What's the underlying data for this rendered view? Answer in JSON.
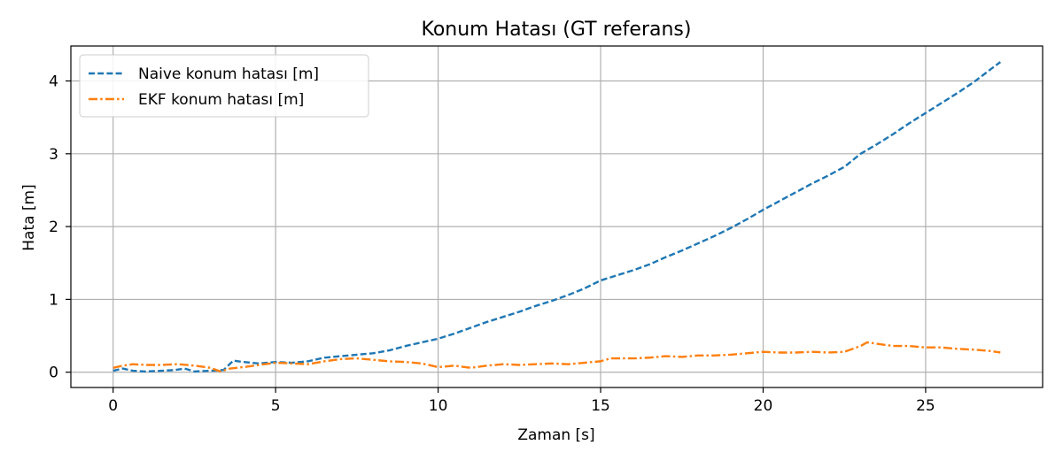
{
  "chart_data": {
    "type": "line",
    "title": "Konum Hatası (GT referans)",
    "xlabel": "Zaman [s]",
    "ylabel": "Hata [m]",
    "xlim": [
      -1.3,
      28.6
    ],
    "ylim": [
      -0.21,
      4.48
    ],
    "xticks": [
      0,
      5,
      10,
      15,
      20,
      25
    ],
    "yticks": [
      0,
      1,
      2,
      3,
      4
    ],
    "grid": true,
    "legend_position": "top-left",
    "series": [
      {
        "name": "Naive konum hatası [m]",
        "color": "#1f77b4",
        "dash": "dashed",
        "points": [
          [
            0,
            0.02
          ],
          [
            0.3,
            0.05
          ],
          [
            0.6,
            0.02
          ],
          [
            1.0,
            0.01
          ],
          [
            1.5,
            0.02
          ],
          [
            1.9,
            0.03
          ],
          [
            2.2,
            0.05
          ],
          [
            2.5,
            0.01
          ],
          [
            3.0,
            0.02
          ],
          [
            3.4,
            0.03
          ],
          [
            3.7,
            0.16
          ],
          [
            4.0,
            0.14
          ],
          [
            4.5,
            0.12
          ],
          [
            5.0,
            0.14
          ],
          [
            5.5,
            0.13
          ],
          [
            6.0,
            0.15
          ],
          [
            6.5,
            0.2
          ],
          [
            7.0,
            0.22
          ],
          [
            7.5,
            0.24
          ],
          [
            8.0,
            0.26
          ],
          [
            8.5,
            0.3
          ],
          [
            9.0,
            0.36
          ],
          [
            9.5,
            0.41
          ],
          [
            10.0,
            0.46
          ],
          [
            10.5,
            0.53
          ],
          [
            11.0,
            0.61
          ],
          [
            11.5,
            0.69
          ],
          [
            12.0,
            0.76
          ],
          [
            12.5,
            0.83
          ],
          [
            13.0,
            0.91
          ],
          [
            13.5,
            0.98
          ],
          [
            14.0,
            1.06
          ],
          [
            14.5,
            1.15
          ],
          [
            15.0,
            1.26
          ],
          [
            15.5,
            1.33
          ],
          [
            16.0,
            1.4
          ],
          [
            16.5,
            1.48
          ],
          [
            17.0,
            1.58
          ],
          [
            17.5,
            1.67
          ],
          [
            18.0,
            1.77
          ],
          [
            18.5,
            1.87
          ],
          [
            19.0,
            1.98
          ],
          [
            19.5,
            2.1
          ],
          [
            20.0,
            2.23
          ],
          [
            20.5,
            2.35
          ],
          [
            21.0,
            2.47
          ],
          [
            21.5,
            2.59
          ],
          [
            22.0,
            2.7
          ],
          [
            22.5,
            2.82
          ],
          [
            23.0,
            3.0
          ],
          [
            23.5,
            3.13
          ],
          [
            24.0,
            3.27
          ],
          [
            24.5,
            3.42
          ],
          [
            25.0,
            3.56
          ],
          [
            25.5,
            3.7
          ],
          [
            26.0,
            3.84
          ],
          [
            26.5,
            3.99
          ],
          [
            27.0,
            4.16
          ],
          [
            27.3,
            4.26
          ]
        ]
      },
      {
        "name": "EKF konum hatası [m]",
        "color": "#ff7f0e",
        "dash": "dashdot",
        "points": [
          [
            0,
            0.06
          ],
          [
            0.3,
            0.09
          ],
          [
            0.6,
            0.11
          ],
          [
            1.0,
            0.1
          ],
          [
            1.5,
            0.1
          ],
          [
            2.0,
            0.11
          ],
          [
            2.5,
            0.09
          ],
          [
            3.0,
            0.06
          ],
          [
            3.3,
            0.01
          ],
          [
            3.6,
            0.05
          ],
          [
            4.0,
            0.07
          ],
          [
            4.5,
            0.1
          ],
          [
            5.0,
            0.13
          ],
          [
            5.5,
            0.12
          ],
          [
            6.0,
            0.11
          ],
          [
            6.5,
            0.15
          ],
          [
            7.0,
            0.18
          ],
          [
            7.5,
            0.19
          ],
          [
            8.0,
            0.17
          ],
          [
            8.5,
            0.15
          ],
          [
            9.0,
            0.14
          ],
          [
            9.5,
            0.12
          ],
          [
            10.0,
            0.07
          ],
          [
            10.5,
            0.09
          ],
          [
            11.0,
            0.06
          ],
          [
            11.5,
            0.09
          ],
          [
            12.0,
            0.11
          ],
          [
            12.5,
            0.1
          ],
          [
            13.0,
            0.11
          ],
          [
            13.5,
            0.12
          ],
          [
            14.0,
            0.11
          ],
          [
            14.5,
            0.13
          ],
          [
            15.0,
            0.15
          ],
          [
            15.3,
            0.19
          ],
          [
            16.0,
            0.19
          ],
          [
            16.5,
            0.2
          ],
          [
            17.0,
            0.22
          ],
          [
            17.5,
            0.21
          ],
          [
            18.0,
            0.23
          ],
          [
            18.5,
            0.23
          ],
          [
            19.0,
            0.24
          ],
          [
            19.5,
            0.26
          ],
          [
            20.0,
            0.28
          ],
          [
            20.5,
            0.27
          ],
          [
            21.0,
            0.27
          ],
          [
            21.5,
            0.28
          ],
          [
            22.0,
            0.27
          ],
          [
            22.5,
            0.28
          ],
          [
            23.0,
            0.36
          ],
          [
            23.2,
            0.41
          ],
          [
            23.5,
            0.39
          ],
          [
            24.0,
            0.36
          ],
          [
            24.5,
            0.36
          ],
          [
            25.0,
            0.34
          ],
          [
            25.5,
            0.34
          ],
          [
            26.0,
            0.32
          ],
          [
            26.5,
            0.31
          ],
          [
            27.0,
            0.29
          ],
          [
            27.3,
            0.27
          ]
        ]
      }
    ]
  }
}
